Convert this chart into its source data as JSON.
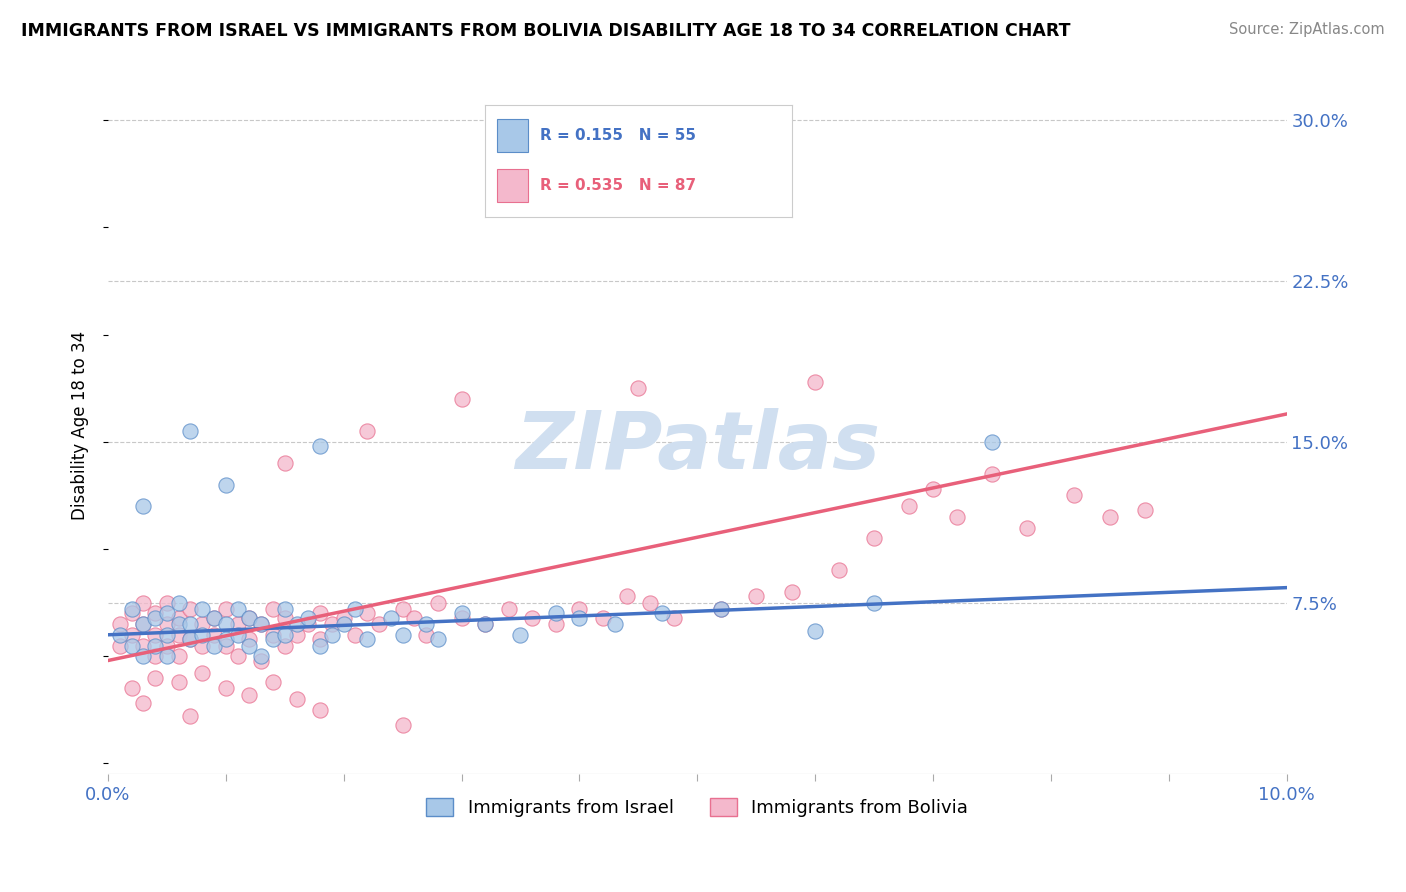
{
  "title": "IMMIGRANTS FROM ISRAEL VS IMMIGRANTS FROM BOLIVIA DISABILITY AGE 18 TO 34 CORRELATION CHART",
  "source": "Source: ZipAtlas.com",
  "ylabel": "Disability Age 18 to 34",
  "xlim": [
    0.0,
    0.1
  ],
  "ylim": [
    -0.005,
    0.32
  ],
  "xticklabels_pos": [
    0.0,
    0.1
  ],
  "xticklabels": [
    "0.0%",
    "10.0%"
  ],
  "yticks_right": [
    0.075,
    0.15,
    0.225,
    0.3
  ],
  "yticklabels_right": [
    "7.5%",
    "15.0%",
    "22.5%",
    "30.0%"
  ],
  "legend_r_israel": "R = 0.155",
  "legend_n_israel": "N = 55",
  "legend_r_bolivia": "R = 0.535",
  "legend_n_bolivia": "N = 87",
  "israel_color": "#a8c8e8",
  "bolivia_color": "#f4b8cc",
  "israel_edge_color": "#5b8dc8",
  "bolivia_edge_color": "#e87090",
  "israel_line_color": "#4472c4",
  "bolivia_line_color": "#e8607a",
  "watermark": "ZIPatlas",
  "watermark_color": "#d0dff0",
  "israel_trend_x": [
    0.0,
    0.1
  ],
  "israel_trend_y": [
    0.06,
    0.082
  ],
  "bolivia_trend_x": [
    0.0,
    0.1
  ],
  "bolivia_trend_y": [
    0.048,
    0.163
  ],
  "israel_scatter_x": [
    0.001,
    0.002,
    0.002,
    0.003,
    0.003,
    0.004,
    0.004,
    0.005,
    0.005,
    0.005,
    0.006,
    0.006,
    0.007,
    0.007,
    0.008,
    0.008,
    0.009,
    0.009,
    0.01,
    0.01,
    0.011,
    0.011,
    0.012,
    0.012,
    0.013,
    0.013,
    0.014,
    0.015,
    0.015,
    0.016,
    0.017,
    0.018,
    0.019,
    0.02,
    0.021,
    0.022,
    0.024,
    0.025,
    0.027,
    0.028,
    0.03,
    0.032,
    0.035,
    0.038,
    0.04,
    0.043,
    0.047,
    0.052,
    0.06,
    0.065,
    0.003,
    0.007,
    0.01,
    0.018,
    0.075
  ],
  "israel_scatter_y": [
    0.06,
    0.055,
    0.072,
    0.065,
    0.05,
    0.068,
    0.055,
    0.07,
    0.06,
    0.05,
    0.065,
    0.075,
    0.058,
    0.065,
    0.072,
    0.06,
    0.068,
    0.055,
    0.065,
    0.058,
    0.072,
    0.06,
    0.068,
    0.055,
    0.065,
    0.05,
    0.058,
    0.072,
    0.06,
    0.065,
    0.068,
    0.055,
    0.06,
    0.065,
    0.072,
    0.058,
    0.068,
    0.06,
    0.065,
    0.058,
    0.07,
    0.065,
    0.06,
    0.07,
    0.068,
    0.065,
    0.07,
    0.072,
    0.062,
    0.075,
    0.12,
    0.155,
    0.13,
    0.148,
    0.15
  ],
  "bolivia_scatter_x": [
    0.001,
    0.001,
    0.002,
    0.002,
    0.003,
    0.003,
    0.003,
    0.004,
    0.004,
    0.004,
    0.005,
    0.005,
    0.005,
    0.006,
    0.006,
    0.006,
    0.007,
    0.007,
    0.008,
    0.008,
    0.009,
    0.009,
    0.01,
    0.01,
    0.011,
    0.011,
    0.012,
    0.012,
    0.013,
    0.013,
    0.014,
    0.014,
    0.015,
    0.015,
    0.016,
    0.017,
    0.018,
    0.018,
    0.019,
    0.02,
    0.021,
    0.022,
    0.023,
    0.025,
    0.026,
    0.027,
    0.028,
    0.03,
    0.032,
    0.034,
    0.036,
    0.038,
    0.04,
    0.042,
    0.044,
    0.046,
    0.048,
    0.052,
    0.055,
    0.058,
    0.062,
    0.065,
    0.068,
    0.07,
    0.072,
    0.075,
    0.078,
    0.082,
    0.085,
    0.088,
    0.015,
    0.022,
    0.03,
    0.045,
    0.06,
    0.002,
    0.004,
    0.006,
    0.008,
    0.01,
    0.012,
    0.014,
    0.016,
    0.003,
    0.007,
    0.018,
    0.025
  ],
  "bolivia_scatter_y": [
    0.065,
    0.055,
    0.07,
    0.06,
    0.065,
    0.055,
    0.075,
    0.06,
    0.07,
    0.05,
    0.065,
    0.055,
    0.075,
    0.068,
    0.06,
    0.05,
    0.072,
    0.058,
    0.065,
    0.055,
    0.068,
    0.06,
    0.072,
    0.055,
    0.065,
    0.05,
    0.068,
    0.058,
    0.065,
    0.048,
    0.072,
    0.06,
    0.068,
    0.055,
    0.06,
    0.065,
    0.07,
    0.058,
    0.065,
    0.068,
    0.06,
    0.07,
    0.065,
    0.072,
    0.068,
    0.06,
    0.075,
    0.068,
    0.065,
    0.072,
    0.068,
    0.065,
    0.072,
    0.068,
    0.078,
    0.075,
    0.068,
    0.072,
    0.078,
    0.08,
    0.09,
    0.105,
    0.12,
    0.128,
    0.115,
    0.135,
    0.11,
    0.125,
    0.115,
    0.118,
    0.14,
    0.155,
    0.17,
    0.175,
    0.178,
    0.035,
    0.04,
    0.038,
    0.042,
    0.035,
    0.032,
    0.038,
    0.03,
    0.028,
    0.022,
    0.025,
    0.018
  ],
  "bottom_legend_label_israel": "Immigrants from Israel",
  "bottom_legend_label_bolivia": "Immigrants from Bolivia"
}
